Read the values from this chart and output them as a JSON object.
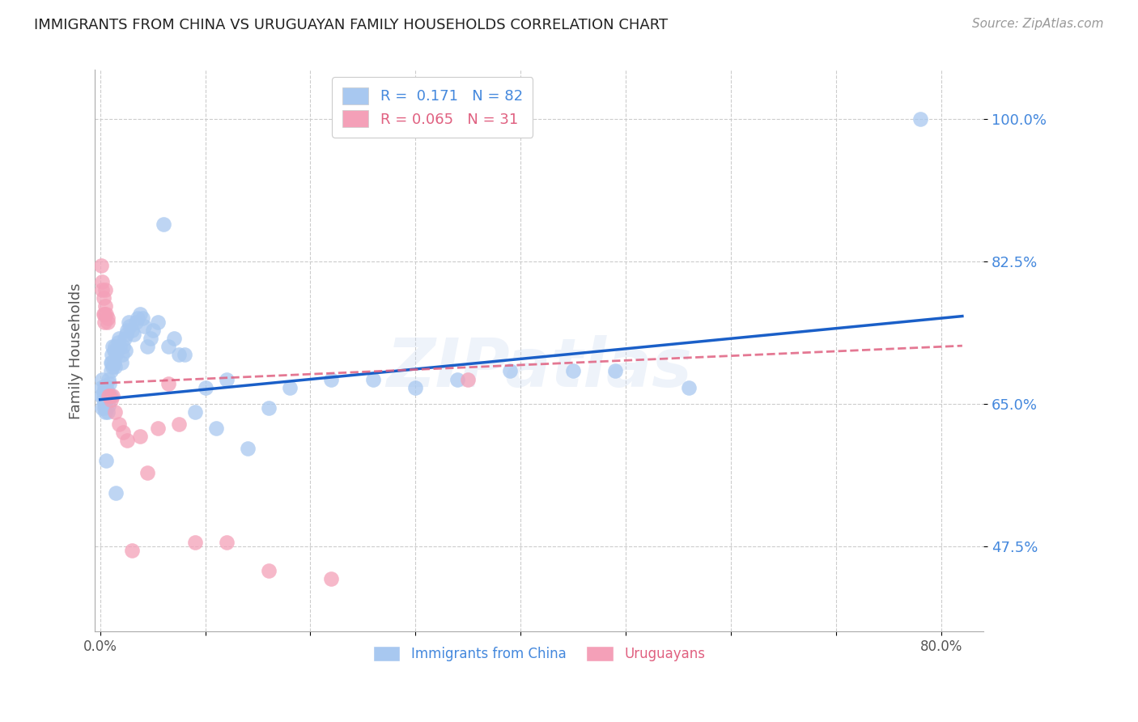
{
  "title": "IMMIGRANTS FROM CHINA VS URUGUAYAN FAMILY HOUSEHOLDS CORRELATION CHART",
  "source": "Source: ZipAtlas.com",
  "ylabel": "Family Households",
  "yticks": [
    0.475,
    0.65,
    0.825,
    1.0
  ],
  "ytick_labels": [
    "47.5%",
    "65.0%",
    "82.5%",
    "100.0%"
  ],
  "xticks": [
    0.0,
    0.1,
    0.2,
    0.3,
    0.4,
    0.5,
    0.6,
    0.7,
    0.8
  ],
  "xtick_labels": [
    "0.0%",
    "",
    "",
    "",
    "",
    "",
    "",
    "",
    "80.0%"
  ],
  "xlim": [
    -0.005,
    0.84
  ],
  "ylim": [
    0.37,
    1.06
  ],
  "blue_color": "#a8c8f0",
  "pink_color": "#f4a0b8",
  "trend_blue": "#1a5fc8",
  "trend_pink": "#e06080",
  "watermark": "ZIPatlas",
  "blue_R": "0.171",
  "blue_N": "82",
  "pink_R": "0.065",
  "pink_N": "31",
  "blue_scatter_x": [
    0.001,
    0.001,
    0.002,
    0.002,
    0.003,
    0.003,
    0.003,
    0.004,
    0.004,
    0.004,
    0.005,
    0.005,
    0.005,
    0.006,
    0.006,
    0.006,
    0.007,
    0.007,
    0.007,
    0.008,
    0.008,
    0.008,
    0.009,
    0.009,
    0.01,
    0.01,
    0.01,
    0.011,
    0.011,
    0.012,
    0.012,
    0.013,
    0.013,
    0.014,
    0.014,
    0.015,
    0.015,
    0.016,
    0.017,
    0.018,
    0.019,
    0.02,
    0.021,
    0.022,
    0.023,
    0.024,
    0.025,
    0.026,
    0.027,
    0.028,
    0.03,
    0.032,
    0.034,
    0.036,
    0.038,
    0.04,
    0.042,
    0.045,
    0.048,
    0.05,
    0.055,
    0.06,
    0.065,
    0.07,
    0.075,
    0.08,
    0.09,
    0.1,
    0.11,
    0.12,
    0.14,
    0.16,
    0.18,
    0.22,
    0.26,
    0.3,
    0.34,
    0.39,
    0.45,
    0.49,
    0.56,
    0.78
  ],
  "blue_scatter_y": [
    0.67,
    0.66,
    0.68,
    0.645,
    0.665,
    0.655,
    0.66,
    0.672,
    0.65,
    0.645,
    0.66,
    0.668,
    0.64,
    0.672,
    0.655,
    0.58,
    0.66,
    0.665,
    0.64,
    0.68,
    0.648,
    0.66,
    0.675,
    0.66,
    0.7,
    0.69,
    0.66,
    0.71,
    0.7,
    0.72,
    0.695,
    0.715,
    0.7,
    0.72,
    0.695,
    0.71,
    0.54,
    0.715,
    0.725,
    0.73,
    0.72,
    0.7,
    0.71,
    0.72,
    0.73,
    0.715,
    0.735,
    0.74,
    0.75,
    0.745,
    0.74,
    0.735,
    0.75,
    0.755,
    0.76,
    0.755,
    0.745,
    0.72,
    0.73,
    0.74,
    0.75,
    0.87,
    0.72,
    0.73,
    0.71,
    0.71,
    0.64,
    0.67,
    0.62,
    0.68,
    0.595,
    0.645,
    0.67,
    0.68,
    0.68,
    0.67,
    0.68,
    0.69,
    0.69,
    0.69,
    0.67,
    1.0
  ],
  "pink_scatter_x": [
    0.001,
    0.002,
    0.002,
    0.003,
    0.003,
    0.004,
    0.004,
    0.005,
    0.005,
    0.006,
    0.007,
    0.007,
    0.008,
    0.009,
    0.01,
    0.012,
    0.014,
    0.018,
    0.022,
    0.026,
    0.03,
    0.038,
    0.045,
    0.055,
    0.065,
    0.075,
    0.09,
    0.12,
    0.16,
    0.22,
    0.35
  ],
  "pink_scatter_y": [
    0.82,
    0.8,
    0.79,
    0.78,
    0.76,
    0.76,
    0.75,
    0.79,
    0.77,
    0.76,
    0.75,
    0.755,
    0.66,
    0.66,
    0.655,
    0.66,
    0.64,
    0.625,
    0.615,
    0.605,
    0.47,
    0.61,
    0.565,
    0.62,
    0.675,
    0.625,
    0.48,
    0.48,
    0.445,
    0.435,
    0.68
  ]
}
